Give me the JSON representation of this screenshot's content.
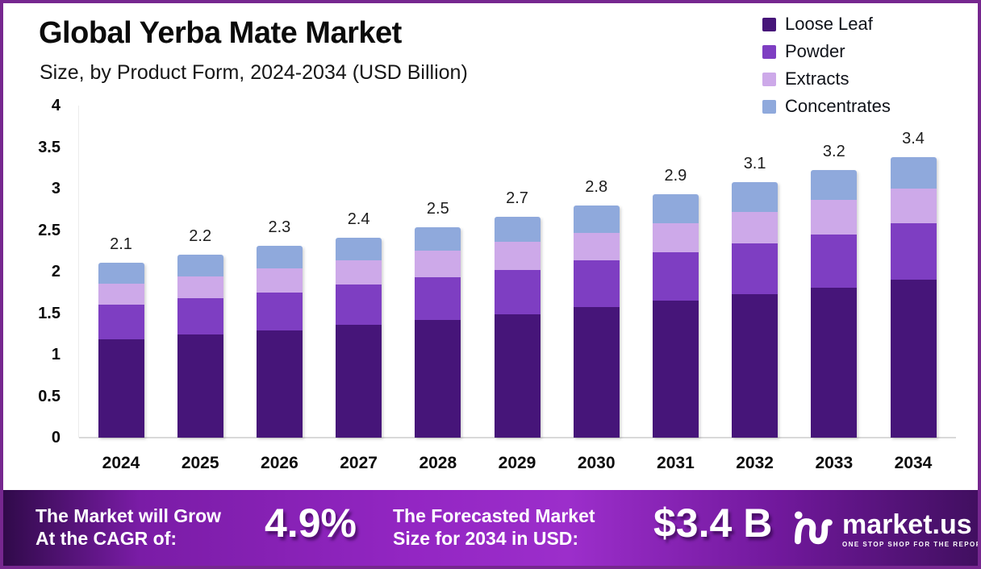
{
  "header": {
    "title": "Global Yerba Mate Market",
    "subtitle": "Size, by Product Form, 2024-2034 (USD Billion)"
  },
  "chart_data": {
    "type": "bar",
    "stacked": true,
    "title": "Global Yerba Mate Market",
    "subtitle": "Size, by Product Form, 2024-2034 (USD Billion)",
    "unit": "USD Billion",
    "categories": [
      "2024",
      "2025",
      "2026",
      "2027",
      "2028",
      "2029",
      "2030",
      "2031",
      "2032",
      "2033",
      "2034"
    ],
    "series": [
      {
        "name": "Loose Leaf",
        "color": "#461579",
        "values": [
          1.18,
          1.24,
          1.29,
          1.36,
          1.42,
          1.49,
          1.57,
          1.65,
          1.73,
          1.81,
          1.9
        ]
      },
      {
        "name": "Powder",
        "color": "#7E3EC2",
        "values": [
          0.42,
          0.44,
          0.46,
          0.48,
          0.51,
          0.53,
          0.57,
          0.58,
          0.61,
          0.64,
          0.68
        ]
      },
      {
        "name": "Extracts",
        "color": "#CDA9E9",
        "values": [
          0.25,
          0.26,
          0.29,
          0.3,
          0.32,
          0.34,
          0.33,
          0.35,
          0.38,
          0.41,
          0.42
        ]
      },
      {
        "name": "Concentrates",
        "color": "#8FA9DC",
        "values": [
          0.26,
          0.26,
          0.27,
          0.27,
          0.28,
          0.3,
          0.33,
          0.35,
          0.36,
          0.36,
          0.38
        ]
      }
    ],
    "totals": [
      "2.1",
      "2.2",
      "2.3",
      "2.4",
      "2.5",
      "2.7",
      "2.8",
      "2.9",
      "3.1",
      "3.2",
      "3.4"
    ],
    "ylim": [
      0,
      4
    ],
    "yticks": [
      "0",
      "0.5",
      "1",
      "1.5",
      "2",
      "2.5",
      "3",
      "3.5",
      "4"
    ],
    "grid": false,
    "legend_position": "top-right"
  },
  "footer": {
    "cagr_label_line1": "The Market will Grow",
    "cagr_label_line2": "At the CAGR of:",
    "cagr_value": "4.9%",
    "forecast_label_line1": "The Forecasted Market",
    "forecast_label_line2": "Size for 2034 in USD:",
    "forecast_value": "$3.4 B",
    "brand": {
      "name": "market.us",
      "tagline": "ONE STOP SHOP FOR THE REPORTS"
    }
  },
  "colors": {
    "page_border": "#76278f",
    "banner_left": "#300a4a",
    "banner_mid": "#9c2ecb",
    "banner_right": "#410f60"
  }
}
